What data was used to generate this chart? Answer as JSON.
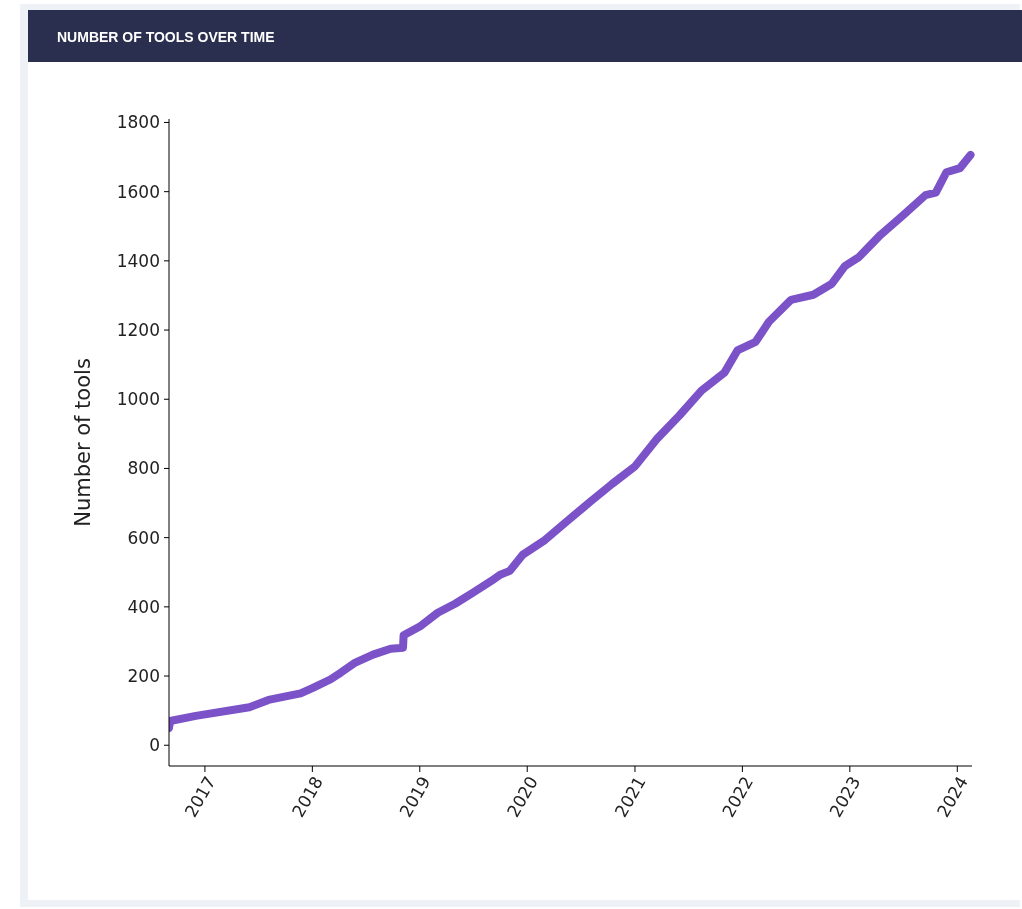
{
  "chart_data": {
    "type": "line",
    "title": "NUMBER OF TOOLS OVER TIME",
    "ylabel": "Number of tools",
    "x": [
      "2016-09-01",
      "2016-09-05",
      "2016-12-01",
      "2017-06-01",
      "2017-08-05",
      "2017-11-22",
      "2018-01-01",
      "2018-03-03",
      "2018-04-08",
      "2018-05-27",
      "2018-07-26",
      "2018-09-24",
      "2018-11-05",
      "2018-11-07",
      "2019-01-01",
      "2019-03-03",
      "2019-05-01",
      "2019-07-01",
      "2019-09-01",
      "2019-10-01",
      "2019-11-03",
      "2019-12-16",
      "2020-03-01",
      "2020-05-20",
      "2020-08-01",
      "2020-10-15",
      "2021-01-01",
      "2021-03-15",
      "2021-06-01",
      "2021-08-15",
      "2021-11-01",
      "2021-12-15",
      "2022-02-15",
      "2022-04-01",
      "2022-06-15",
      "2022-08-30",
      "2022-11-01",
      "2022-12-15",
      "2023-02-01",
      "2023-04-15",
      "2023-07-01",
      "2023-09-15",
      "2023-10-20",
      "2023-11-25",
      "2024-01-10",
      "2024-02-15"
    ],
    "series": [
      {
        "color": "#7b52c8",
        "values": [
          50,
          70,
          85,
          110,
          131,
          150,
          165,
          190,
          210,
          239,
          262,
          279,
          282,
          318,
          343,
          383,
          409,
          441,
          475,
          493,
          504,
          550,
          593,
          651,
          703,
          755,
          806,
          884,
          953,
          1025,
          1077,
          1141,
          1166,
          1224,
          1287,
          1302,
          1334,
          1385,
          1411,
          1475,
          1532,
          1590,
          1597,
          1656,
          1668,
          1706
        ]
      }
    ],
    "xlim": [
      "2016-09-01",
      "2024-02-20"
    ],
    "xticks": [
      {
        "value": "2017-01-01",
        "label": "2017"
      },
      {
        "value": "2018-01-01",
        "label": "2018"
      },
      {
        "value": "2019-01-01",
        "label": "2019"
      },
      {
        "value": "2020-01-01",
        "label": "2020"
      },
      {
        "value": "2021-01-01",
        "label": "2021"
      },
      {
        "value": "2022-01-01",
        "label": "2022"
      },
      {
        "value": "2023-01-01",
        "label": "2023"
      },
      {
        "value": "2024-01-01",
        "label": "2024"
      }
    ],
    "ylim": [
      -60,
      1810
    ],
    "yticks": [
      0,
      200,
      400,
      600,
      800,
      1000,
      1200,
      1400,
      1600,
      1800
    ],
    "grid": false,
    "marker": "none",
    "line_style": "solid"
  }
}
